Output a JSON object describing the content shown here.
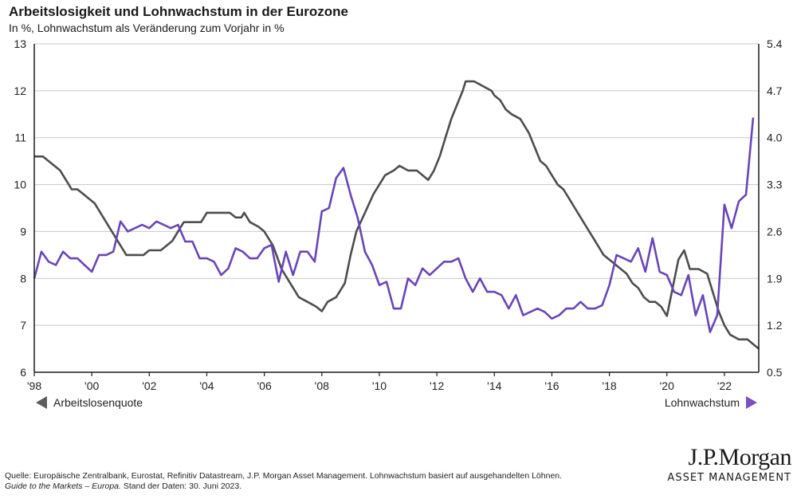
{
  "header": {
    "title": "Arbeitslosigkeit und Lohnwachstum in der Eurozone",
    "subtitle": "In %, Lohnwachstum als Veränderung zum Vorjahr in %"
  },
  "legend": {
    "left_label": "Arbeitslosenquote",
    "right_label": "Lohnwachstum"
  },
  "footnote": {
    "line1": "Quelle: Europäische Zentralbank, Eurostat, Refinitiv Datastream, J.P. Morgan Asset Management. Lohnwachstum basiert auf ausgehandelten Löhnen.",
    "line2_italic": "Guide to the Markets – Europa.",
    "line2_rest": " Stand der Daten: 30. Juni 2023."
  },
  "logo": {
    "main": "J.P.Morgan",
    "sub": "ASSET MANAGEMENT"
  },
  "colors": {
    "unemployment": "#4d4d4f",
    "wages": "#6a45b8",
    "grid": "#c8c8c8",
    "axis": "#1a1a1a"
  },
  "chart_data": {
    "type": "line",
    "title": "Arbeitslosigkeit und Lohnwachstum in der Eurozone",
    "subtitle": "In %, Lohnwachstum als Veränderung zum Vorjahr in %",
    "xlabel": "",
    "x_range": [
      1998,
      2023.5
    ],
    "x_ticks": [
      1998,
      2000,
      2002,
      2004,
      2006,
      2008,
      2010,
      2012,
      2014,
      2016,
      2018,
      2020,
      2022
    ],
    "x_tick_labels": [
      "'98",
      "'00",
      "'02",
      "'04",
      "'06",
      "'08",
      "'10",
      "'12",
      "'14",
      "'16",
      "'18",
      "'20",
      "'22"
    ],
    "y_left": {
      "label": "Arbeitslosenquote",
      "range": [
        6,
        13
      ],
      "ticks": [
        6,
        7,
        8,
        9,
        10,
        11,
        12,
        13
      ]
    },
    "y_right": {
      "label": "Lohnwachstum",
      "range": [
        0.5,
        5.4
      ],
      "ticks": [
        "0.5",
        "1.2",
        "1.9",
        "2.6",
        "3.3",
        "4.0",
        "4.7",
        "5.4"
      ]
    },
    "grid": true,
    "legend": [
      "bottom-left: Arbeitslosenquote (linke Achse)",
      "bottom-right: Lohnwachstum (rechte Achse)"
    ],
    "series": [
      {
        "name": "Arbeitslosenquote",
        "axis": "left",
        "points": [
          [
            1998.0,
            10.6
          ],
          [
            1998.3,
            10.6
          ],
          [
            1998.5,
            10.5
          ],
          [
            1998.7,
            10.4
          ],
          [
            1998.9,
            10.3
          ],
          [
            1999.1,
            10.1
          ],
          [
            1999.3,
            9.9
          ],
          [
            1999.5,
            9.9
          ],
          [
            1999.7,
            9.8
          ],
          [
            1999.9,
            9.7
          ],
          [
            2000.1,
            9.6
          ],
          [
            2000.3,
            9.4
          ],
          [
            2000.5,
            9.2
          ],
          [
            2000.7,
            9.0
          ],
          [
            2000.9,
            8.8
          ],
          [
            2001.0,
            8.7
          ],
          [
            2001.2,
            8.5
          ],
          [
            2001.5,
            8.5
          ],
          [
            2001.8,
            8.5
          ],
          [
            2002.0,
            8.6
          ],
          [
            2002.4,
            8.6
          ],
          [
            2002.6,
            8.7
          ],
          [
            2002.8,
            8.8
          ],
          [
            2003.0,
            9.0
          ],
          [
            2003.2,
            9.2
          ],
          [
            2003.5,
            9.2
          ],
          [
            2003.8,
            9.2
          ],
          [
            2004.0,
            9.4
          ],
          [
            2004.4,
            9.4
          ],
          [
            2004.8,
            9.4
          ],
          [
            2005.0,
            9.3
          ],
          [
            2005.2,
            9.3
          ],
          [
            2005.3,
            9.4
          ],
          [
            2005.5,
            9.2
          ],
          [
            2005.8,
            9.1
          ],
          [
            2006.0,
            9.0
          ],
          [
            2006.3,
            8.7
          ],
          [
            2006.6,
            8.2
          ],
          [
            2006.9,
            7.9
          ],
          [
            2007.2,
            7.6
          ],
          [
            2007.5,
            7.5
          ],
          [
            2007.8,
            7.4
          ],
          [
            2008.0,
            7.3
          ],
          [
            2008.2,
            7.5
          ],
          [
            2008.5,
            7.6
          ],
          [
            2008.8,
            7.9
          ],
          [
            2009.0,
            8.5
          ],
          [
            2009.2,
            9.0
          ],
          [
            2009.5,
            9.4
          ],
          [
            2009.8,
            9.8
          ],
          [
            2010.0,
            10.0
          ],
          [
            2010.2,
            10.2
          ],
          [
            2010.5,
            10.3
          ],
          [
            2010.7,
            10.4
          ],
          [
            2011.0,
            10.3
          ],
          [
            2011.3,
            10.3
          ],
          [
            2011.5,
            10.2
          ],
          [
            2011.7,
            10.1
          ],
          [
            2011.9,
            10.3
          ],
          [
            2012.1,
            10.6
          ],
          [
            2012.3,
            11.0
          ],
          [
            2012.5,
            11.4
          ],
          [
            2012.7,
            11.7
          ],
          [
            2012.9,
            12.0
          ],
          [
            2013.0,
            12.2
          ],
          [
            2013.3,
            12.2
          ],
          [
            2013.6,
            12.1
          ],
          [
            2013.9,
            12.0
          ],
          [
            2014.0,
            11.9
          ],
          [
            2014.2,
            11.8
          ],
          [
            2014.4,
            11.6
          ],
          [
            2014.6,
            11.5
          ],
          [
            2014.9,
            11.4
          ],
          [
            2015.2,
            11.1
          ],
          [
            2015.4,
            10.8
          ],
          [
            2015.6,
            10.5
          ],
          [
            2015.8,
            10.4
          ],
          [
            2016.0,
            10.2
          ],
          [
            2016.2,
            10.0
          ],
          [
            2016.4,
            9.9
          ],
          [
            2016.6,
            9.7
          ],
          [
            2016.8,
            9.5
          ],
          [
            2017.0,
            9.3
          ],
          [
            2017.2,
            9.1
          ],
          [
            2017.4,
            8.9
          ],
          [
            2017.6,
            8.7
          ],
          [
            2017.8,
            8.5
          ],
          [
            2018.0,
            8.4
          ],
          [
            2018.2,
            8.3
          ],
          [
            2018.4,
            8.2
          ],
          [
            2018.6,
            8.1
          ],
          [
            2018.8,
            7.9
          ],
          [
            2019.0,
            7.8
          ],
          [
            2019.2,
            7.6
          ],
          [
            2019.4,
            7.5
          ],
          [
            2019.6,
            7.5
          ],
          [
            2019.8,
            7.4
          ],
          [
            2020.0,
            7.2
          ],
          [
            2020.2,
            7.8
          ],
          [
            2020.4,
            8.4
          ],
          [
            2020.6,
            8.6
          ],
          [
            2020.8,
            8.2
          ],
          [
            2021.1,
            8.2
          ],
          [
            2021.4,
            8.1
          ],
          [
            2021.6,
            7.7
          ],
          [
            2021.8,
            7.3
          ],
          [
            2022.0,
            7.0
          ],
          [
            2022.2,
            6.8
          ],
          [
            2022.5,
            6.7
          ],
          [
            2022.8,
            6.7
          ],
          [
            2023.0,
            6.6
          ],
          [
            2023.2,
            6.5
          ]
        ]
      },
      {
        "name": "Lohnwachstum",
        "axis": "right",
        "points": [
          [
            1998.0,
            1.9
          ],
          [
            1998.25,
            2.3
          ],
          [
            1998.5,
            2.15
          ],
          [
            1998.75,
            2.1
          ],
          [
            1999.0,
            2.3
          ],
          [
            1999.25,
            2.2
          ],
          [
            1999.5,
            2.2
          ],
          [
            1999.75,
            2.1
          ],
          [
            2000.0,
            2.0
          ],
          [
            2000.25,
            2.25
          ],
          [
            2000.5,
            2.25
          ],
          [
            2000.75,
            2.3
          ],
          [
            2001.0,
            2.75
          ],
          [
            2001.25,
            2.6
          ],
          [
            2001.5,
            2.65
          ],
          [
            2001.75,
            2.7
          ],
          [
            2002.0,
            2.65
          ],
          [
            2002.25,
            2.75
          ],
          [
            2002.5,
            2.7
          ],
          [
            2002.75,
            2.65
          ],
          [
            2003.0,
            2.7
          ],
          [
            2003.25,
            2.45
          ],
          [
            2003.5,
            2.45
          ],
          [
            2003.75,
            2.2
          ],
          [
            2004.0,
            2.2
          ],
          [
            2004.25,
            2.15
          ],
          [
            2004.5,
            1.95
          ],
          [
            2004.75,
            2.05
          ],
          [
            2005.0,
            2.35
          ],
          [
            2005.25,
            2.3
          ],
          [
            2005.5,
            2.2
          ],
          [
            2005.75,
            2.2
          ],
          [
            2006.0,
            2.35
          ],
          [
            2006.25,
            2.4
          ],
          [
            2006.5,
            1.85
          ],
          [
            2006.75,
            2.3
          ],
          [
            2007.0,
            1.95
          ],
          [
            2007.25,
            2.3
          ],
          [
            2007.5,
            2.3
          ],
          [
            2007.75,
            2.15
          ],
          [
            2008.0,
            2.9
          ],
          [
            2008.25,
            2.95
          ],
          [
            2008.5,
            3.4
          ],
          [
            2008.75,
            3.55
          ],
          [
            2009.0,
            3.15
          ],
          [
            2009.25,
            2.8
          ],
          [
            2009.5,
            2.3
          ],
          [
            2009.75,
            2.1
          ],
          [
            2010.0,
            1.8
          ],
          [
            2010.25,
            1.85
          ],
          [
            2010.5,
            1.45
          ],
          [
            2010.75,
            1.45
          ],
          [
            2011.0,
            1.9
          ],
          [
            2011.25,
            1.8
          ],
          [
            2011.5,
            2.05
          ],
          [
            2011.75,
            1.95
          ],
          [
            2012.0,
            2.05
          ],
          [
            2012.25,
            2.15
          ],
          [
            2012.5,
            2.15
          ],
          [
            2012.75,
            2.2
          ],
          [
            2013.0,
            1.9
          ],
          [
            2013.25,
            1.7
          ],
          [
            2013.5,
            1.9
          ],
          [
            2013.75,
            1.7
          ],
          [
            2014.0,
            1.7
          ],
          [
            2014.25,
            1.65
          ],
          [
            2014.5,
            1.45
          ],
          [
            2014.75,
            1.65
          ],
          [
            2015.0,
            1.35
          ],
          [
            2015.25,
            1.4
          ],
          [
            2015.5,
            1.45
          ],
          [
            2015.75,
            1.4
          ],
          [
            2016.0,
            1.3
          ],
          [
            2016.25,
            1.35
          ],
          [
            2016.5,
            1.45
          ],
          [
            2016.75,
            1.45
          ],
          [
            2017.0,
            1.55
          ],
          [
            2017.25,
            1.45
          ],
          [
            2017.5,
            1.45
          ],
          [
            2017.75,
            1.5
          ],
          [
            2018.0,
            1.8
          ],
          [
            2018.25,
            2.25
          ],
          [
            2018.5,
            2.2
          ],
          [
            2018.75,
            2.15
          ],
          [
            2019.0,
            2.35
          ],
          [
            2019.25,
            2.0
          ],
          [
            2019.5,
            2.5
          ],
          [
            2019.75,
            2.0
          ],
          [
            2020.0,
            1.95
          ],
          [
            2020.25,
            1.7
          ],
          [
            2020.5,
            1.65
          ],
          [
            2020.75,
            1.95
          ],
          [
            2021.0,
            1.35
          ],
          [
            2021.25,
            1.65
          ],
          [
            2021.5,
            1.1
          ],
          [
            2021.75,
            1.35
          ],
          [
            2022.0,
            3.0
          ],
          [
            2022.25,
            2.65
          ],
          [
            2022.5,
            3.05
          ],
          [
            2022.75,
            3.15
          ],
          [
            2023.0,
            4.3
          ]
        ]
      }
    ]
  }
}
